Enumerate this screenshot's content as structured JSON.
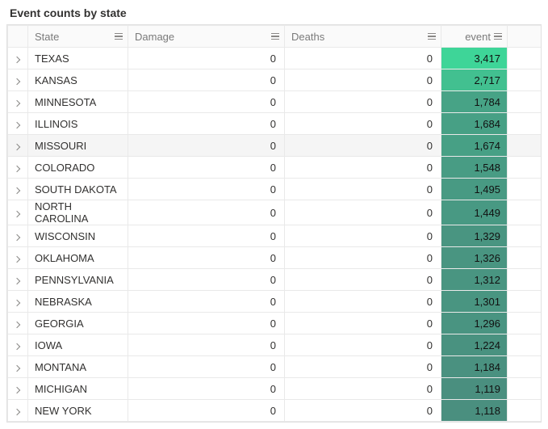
{
  "title": "Event counts by state",
  "columns": {
    "state": {
      "label": "State"
    },
    "damage": {
      "label": "Damage"
    },
    "deaths": {
      "label": "Deaths"
    },
    "event": {
      "label": "event"
    }
  },
  "heatmap": {
    "min_color": "#4a8f7f",
    "max_color": "#3ed598",
    "min_value": 1118,
    "max_value": 3417
  },
  "highlight_row_index": 4,
  "rows": [
    {
      "state": "TEXAS",
      "damage": "0",
      "deaths": "0",
      "event": "3,417",
      "event_num": 3417
    },
    {
      "state": "KANSAS",
      "damage": "0",
      "deaths": "0",
      "event": "2,717",
      "event_num": 2717
    },
    {
      "state": "MINNESOTA",
      "damage": "0",
      "deaths": "0",
      "event": "1,784",
      "event_num": 1784
    },
    {
      "state": "ILLINOIS",
      "damage": "0",
      "deaths": "0",
      "event": "1,684",
      "event_num": 1684
    },
    {
      "state": "MISSOURI",
      "damage": "0",
      "deaths": "0",
      "event": "1,674",
      "event_num": 1674
    },
    {
      "state": "COLORADO",
      "damage": "0",
      "deaths": "0",
      "event": "1,548",
      "event_num": 1548
    },
    {
      "state": "SOUTH DAKOTA",
      "damage": "0",
      "deaths": "0",
      "event": "1,495",
      "event_num": 1495
    },
    {
      "state": "NORTH CAROLINA",
      "damage": "0",
      "deaths": "0",
      "event": "1,449",
      "event_num": 1449
    },
    {
      "state": "WISCONSIN",
      "damage": "0",
      "deaths": "0",
      "event": "1,329",
      "event_num": 1329
    },
    {
      "state": "OKLAHOMA",
      "damage": "0",
      "deaths": "0",
      "event": "1,326",
      "event_num": 1326
    },
    {
      "state": "PENNSYLVANIA",
      "damage": "0",
      "deaths": "0",
      "event": "1,312",
      "event_num": 1312
    },
    {
      "state": "NEBRASKA",
      "damage": "0",
      "deaths": "0",
      "event": "1,301",
      "event_num": 1301
    },
    {
      "state": "GEORGIA",
      "damage": "0",
      "deaths": "0",
      "event": "1,296",
      "event_num": 1296
    },
    {
      "state": "IOWA",
      "damage": "0",
      "deaths": "0",
      "event": "1,224",
      "event_num": 1224
    },
    {
      "state": "MONTANA",
      "damage": "0",
      "deaths": "0",
      "event": "1,184",
      "event_num": 1184
    },
    {
      "state": "MICHIGAN",
      "damage": "0",
      "deaths": "0",
      "event": "1,119",
      "event_num": 1119
    },
    {
      "state": "NEW YORK",
      "damage": "0",
      "deaths": "0",
      "event": "1,118",
      "event_num": 1118
    }
  ]
}
